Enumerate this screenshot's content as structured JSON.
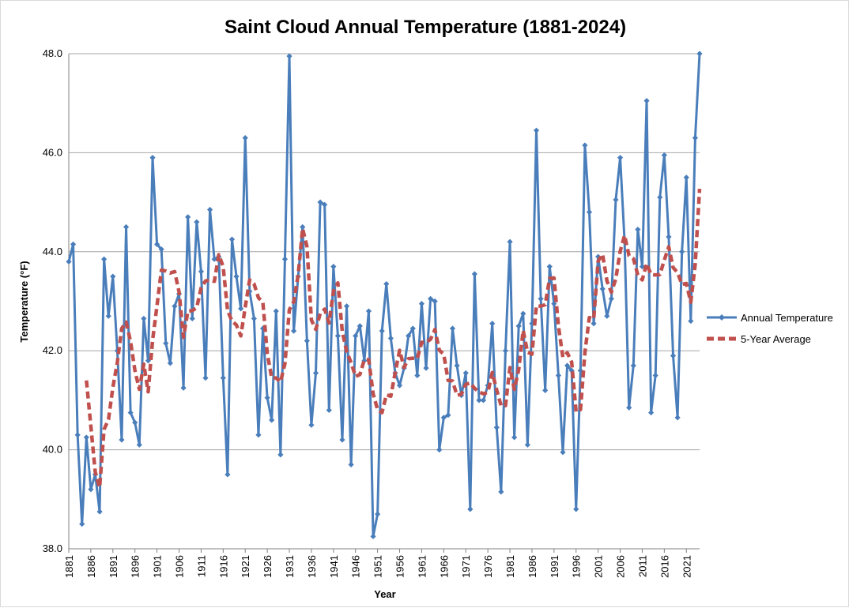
{
  "chart_data": {
    "type": "line",
    "title": "Saint Cloud Annual Temperature (1881-2024)",
    "xlabel": "Year",
    "ylabel": "Temperature (°F)",
    "ylim": [
      38.0,
      48.0
    ],
    "xlim": [
      1881,
      2024
    ],
    "y_ticks": [
      "38.0",
      "40.0",
      "42.0",
      "44.0",
      "46.0",
      "48.0"
    ],
    "x_ticks": [
      "1881",
      "1886",
      "1891",
      "1896",
      "1901",
      "1906",
      "1911",
      "1916",
      "1921",
      "1926",
      "1931",
      "1936",
      "1941",
      "1946",
      "1951",
      "1956",
      "1961",
      "1966",
      "1971",
      "1976",
      "1981",
      "1986",
      "1991",
      "1996",
      "2001",
      "2006",
      "2011",
      "2016",
      "2021"
    ],
    "grid": "horizontal",
    "legend_position": "right",
    "colors": {
      "annual": "#4a7ebb",
      "average": "#c0504d",
      "grid": "#a6a6a6"
    },
    "x_start": 1881,
    "series": [
      {
        "name": "Annual Temperature",
        "style": "solid line with diamond markers",
        "values": [
          43.8,
          44.15,
          40.3,
          38.5,
          40.25,
          39.2,
          39.5,
          38.75,
          43.85,
          42.7,
          43.5,
          42.0,
          40.2,
          44.5,
          40.75,
          40.55,
          40.1,
          42.65,
          41.8,
          45.9,
          44.15,
          44.05,
          42.15,
          41.75,
          42.9,
          43.15,
          41.25,
          44.7,
          42.65,
          44.6,
          43.6,
          41.45,
          44.85,
          43.85,
          43.9,
          41.45,
          39.5,
          44.25,
          43.5,
          42.85,
          46.3,
          43.2,
          42.65,
          40.3,
          42.45,
          41.05,
          40.6,
          42.8,
          39.9,
          43.85,
          47.95,
          42.4,
          43.5,
          44.5,
          42.2,
          40.5,
          41.55,
          45.0,
          44.95,
          40.8,
          43.7,
          42.3,
          40.2,
          42.9,
          39.7,
          42.3,
          42.5,
          41.8,
          42.8,
          38.25,
          38.7,
          42.4,
          43.35,
          42.25,
          41.55,
          41.3,
          41.65,
          42.3,
          42.45,
          41.5,
          42.95,
          41.65,
          43.05,
          43.0,
          40.0,
          40.65,
          40.7,
          42.45,
          41.7,
          41.1,
          41.55,
          38.8,
          43.55,
          41.0,
          41.0,
          41.3,
          42.55,
          40.45,
          39.15,
          42.0,
          44.2,
          40.25,
          42.5,
          42.75,
          40.1,
          42.55,
          46.45,
          43.05,
          41.2,
          43.7,
          42.95,
          41.5,
          39.95,
          41.7,
          41.6,
          38.8,
          41.6,
          46.15,
          44.8,
          42.55,
          43.9,
          43.25,
          42.7,
          43.05,
          45.05,
          45.9,
          44.2,
          40.85,
          41.7,
          44.45,
          43.7,
          47.05,
          40.75,
          41.5,
          45.1,
          45.95,
          44.3,
          41.9,
          40.65,
          44.0,
          45.5,
          42.6,
          46.3,
          48.0
        ]
      },
      {
        "name": "5-Year Average",
        "style": "dashed line",
        "values": [
          null,
          null,
          null,
          null,
          41.4,
          40.48,
          39.55,
          39.24,
          40.41,
          40.61,
          41.26,
          41.76,
          42.45,
          42.58,
          42.19,
          41.6,
          41.22,
          41.73,
          41.17,
          42.21,
          42.91,
          43.63,
          43.61,
          43.57,
          43.6,
          43.19,
          42.27,
          42.8,
          42.81,
          42.87,
          43.27,
          43.41,
          43.43,
          43.4,
          43.94,
          43.7,
          42.81,
          42.6,
          42.52,
          42.3,
          42.88,
          43.43,
          43.35,
          43.07,
          42.98,
          41.94,
          41.45,
          41.45,
          41.37,
          41.74,
          42.83,
          42.99,
          43.53,
          44.47,
          44.1,
          42.62,
          42.43,
          42.75,
          42.84,
          42.56,
          43.2,
          43.37,
          42.39,
          41.98,
          41.76,
          41.48,
          41.52,
          41.82,
          41.82,
          41.13,
          40.81,
          40.75,
          41.11,
          41.08,
          41.56,
          42.01,
          41.66,
          41.84,
          41.85,
          41.84,
          42.17,
          42.17,
          42.23,
          42.43,
          42.01,
          41.93,
          41.4,
          41.39,
          41.1,
          41.12,
          41.32,
          41.35,
          41.24,
          41.17,
          41.13,
          41.16,
          41.56,
          41.21,
          40.89,
          40.89,
          41.66,
          41.22,
          41.62,
          42.41,
          41.97,
          41.93,
          42.91,
          42.9,
          42.93,
          43.46,
          43.47,
          42.5,
          41.87,
          41.96,
          41.77,
          40.77,
          40.81,
          41.96,
          42.67,
          42.64,
          43.81,
          43.95,
          43.41,
          43.18,
          43.45,
          44.01,
          44.33,
          43.92,
          43.86,
          43.53,
          43.43,
          43.76,
          43.54,
          43.53,
          43.54,
          43.83,
          44.1,
          43.68,
          43.58,
          43.34,
          43.36,
          42.98,
          43.74,
          45.27
        ]
      }
    ]
  }
}
